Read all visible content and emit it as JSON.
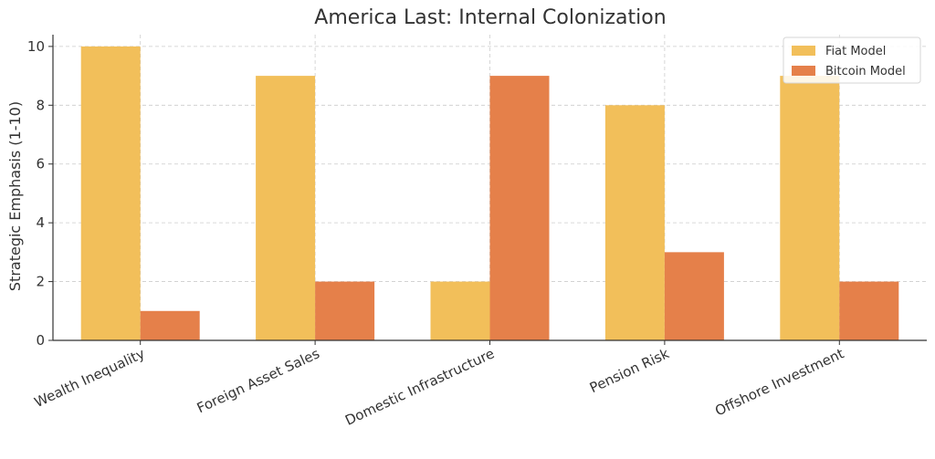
{
  "chart_data": {
    "type": "bar",
    "title": "America Last: Internal Colonization",
    "xlabel": "",
    "ylabel": "Strategic Emphasis (1-10)",
    "categories": [
      "Wealth Inequality",
      "Foreign Asset Sales",
      "Domestic Infrastructure",
      "Pension Risk",
      "Offshore Investment"
    ],
    "series": [
      {
        "name": "Fiat Model",
        "values": [
          10,
          9,
          2,
          8,
          9
        ],
        "color": "#f2bf5a"
      },
      {
        "name": "Bitcoin Model",
        "values": [
          1,
          2,
          9,
          3,
          2
        ],
        "color": "#e5804a"
      }
    ],
    "ylim": [
      0,
      10.4
    ],
    "yticks": [
      0,
      2,
      4,
      6,
      8,
      10
    ],
    "grid": true,
    "legend_position": "top-right"
  }
}
